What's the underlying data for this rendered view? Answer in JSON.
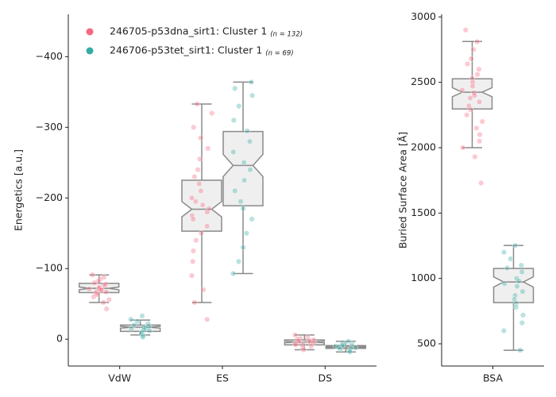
{
  "chart_data": [
    {
      "type": "box",
      "ylabel": "Energetics [a.u.]",
      "categories": [
        "VdW",
        "ES",
        "DS"
      ],
      "ylim": [
        38,
        -460
      ],
      "yticks": [
        0,
        {
          "value": -100,
          "label": "−100"
        },
        {
          "value": -200,
          "label": "−200"
        },
        {
          "value": -300,
          "label": "−300"
        },
        {
          "value": -400,
          "label": "−400"
        }
      ],
      "legend": "upper left",
      "series": [
        {
          "name": "246705-p53dna_sirt1: Cluster 1",
          "n_label": "(n = 132)",
          "color": "#f5687f",
          "boxes": [
            {
              "min": -91,
              "q1": -79,
              "median": -72,
              "q3": -66,
              "max": -52
            },
            {
              "min": -333,
              "q1": -225,
              "median": -184,
              "q3": -153,
              "max": -52
            },
            {
              "min": -6,
              "q1": 1,
              "median": 4,
              "q3": 8,
              "max": 15
            }
          ],
          "points": [
            [
              -91,
              -88,
              -85,
              -82,
              -80,
              -78,
              -76,
              -74,
              -73,
              -72,
              -71,
              -70,
              -69,
              -68,
              -67,
              -65,
              -63,
              -60,
              -56,
              -52,
              -43
            ],
            [
              -333,
              -320,
              -300,
              -285,
              -270,
              -255,
              -240,
              -230,
              -220,
              -210,
              -200,
              -195,
              -190,
              -185,
              -180,
              -175,
              -170,
              -160,
              -150,
              -140,
              -125,
              -110,
              -90,
              -70,
              -52,
              -28
            ],
            [
              -6,
              -3,
              -1,
              0,
              1,
              2,
              3,
              4,
              5,
              6,
              7,
              8,
              10,
              12,
              15
            ]
          ]
        },
        {
          "name": "246706-p53tet_sirt1: Cluster 1",
          "n_label": "(n = 69)",
          "color": "#36ada4",
          "boxes": [
            {
              "min": -27,
              "q1": -20,
              "median": -17,
              "q3": -11,
              "max": -6
            },
            {
              "min": -364,
              "q1": -294,
              "median": -246,
              "q3": -189,
              "max": -93
            },
            {
              "min": 3,
              "q1": 9,
              "median": 11,
              "q3": 13,
              "max": 18
            }
          ],
          "points": [
            [
              -33,
              -28,
              -25,
              -22,
              -20,
              -18,
              -17,
              -16,
              -15,
              -13,
              -12,
              -10,
              -8,
              -5,
              -3
            ],
            [
              -364,
              -355,
              -345,
              -330,
              -310,
              -295,
              -280,
              -265,
              -250,
              -240,
              -225,
              -210,
              -195,
              -185,
              -170,
              -150,
              -130,
              -110,
              -93
            ],
            [
              3,
              5,
              7,
              8,
              9,
              10,
              11,
              12,
              13,
              14,
              16,
              18
            ]
          ]
        }
      ]
    },
    {
      "type": "box",
      "ylabel": "Buried Surface Area [Å]",
      "categories": [
        "BSA"
      ],
      "ylim": [
        330,
        3020
      ],
      "yticks": [
        500,
        1000,
        1500,
        2000,
        2500,
        3000
      ],
      "series": [
        {
          "color": "#f5687f",
          "boxes": [
            {
              "min": 2000,
              "q1": 2296,
              "median": 2424,
              "q3": 2527,
              "max": 2812
            }
          ],
          "points": [
            [
              2900,
              2810,
              2750,
              2680,
              2640,
              2600,
              2560,
              2530,
              2500,
              2470,
              2440,
              2420,
              2400,
              2380,
              2350,
              2320,
              2290,
              2250,
              2200,
              2150,
              2100,
              2050,
              2000,
              1930,
              1730
            ]
          ]
        },
        {
          "color": "#36ada4",
          "boxes": [
            {
              "min": 451,
              "q1": 815,
              "median": 973,
              "q3": 1076,
              "max": 1252
            }
          ],
          "points": [
            [
              1252,
              1200,
              1150,
              1100,
              1080,
              1050,
              1000,
              980,
              960,
              940,
              900,
              870,
              840,
              810,
              780,
              720,
              660,
              600,
              451
            ]
          ]
        }
      ]
    }
  ]
}
